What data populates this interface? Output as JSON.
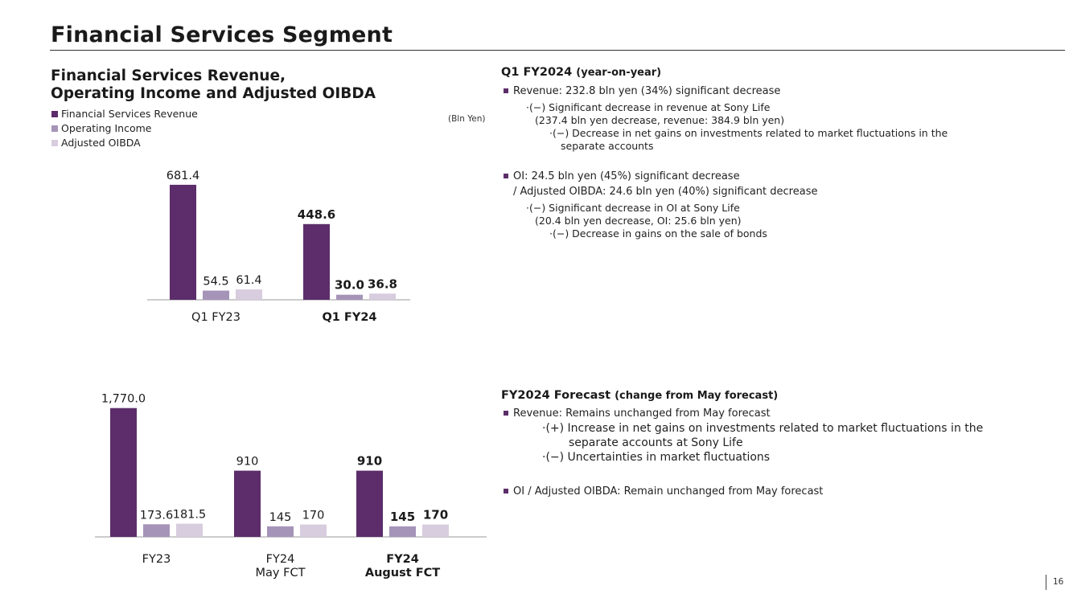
{
  "page": {
    "title": "Financial Services Segment",
    "page_number": "16"
  },
  "section": {
    "title_line1": "Financial Services Revenue,",
    "title_line2": "Operating Income and Adjusted OIBDA"
  },
  "legend": [
    {
      "label": "Financial Services Revenue",
      "color": "#5c2d6a"
    },
    {
      "label": "Operating Income",
      "color": "#a594b8"
    },
    {
      "label": "Adjusted OIBDA",
      "color": "#d8ccdf"
    }
  ],
  "unit_label": "(Bln Yen)",
  "chart_data": [
    {
      "type": "bar",
      "title": "Financial Services Revenue, Operating Income and Adjusted OIBDA (Q1)",
      "unit": "Bln Yen",
      "categories": [
        "Q1 FY23",
        "Q1 FY24"
      ],
      "category_bold": [
        false,
        true
      ],
      "series": [
        {
          "name": "Financial Services Revenue",
          "values": [
            681.4,
            448.6
          ],
          "labels": [
            "681.4",
            "448.6"
          ]
        },
        {
          "name": "Operating Income",
          "values": [
            54.5,
            30.0
          ],
          "labels": [
            "54.5",
            "30.0"
          ]
        },
        {
          "name": "Adjusted OIBDA",
          "values": [
            61.4,
            36.8
          ],
          "labels": [
            "61.4",
            "36.8"
          ]
        }
      ],
      "ylim": [
        0,
        700
      ]
    },
    {
      "type": "bar",
      "title": "Financial Services Revenue, Operating Income and Adjusted OIBDA (Fiscal Year)",
      "unit": "Bln Yen",
      "categories": [
        [
          "FY23"
        ],
        [
          "FY24",
          "May FCT"
        ],
        [
          "FY24",
          "August FCT"
        ]
      ],
      "category_bold": [
        false,
        false,
        true
      ],
      "series": [
        {
          "name": "Financial Services Revenue",
          "values": [
            1770.0,
            910,
            910
          ],
          "labels": [
            "1,770.0",
            "910",
            "910"
          ]
        },
        {
          "name": "Operating Income",
          "values": [
            173.6,
            145,
            145
          ],
          "labels": [
            "173.6",
            "145",
            "145"
          ]
        },
        {
          "name": "Adjusted OIBDA",
          "values": [
            181.5,
            170,
            170
          ],
          "labels": [
            "181.5",
            "170",
            "170"
          ]
        }
      ],
      "ylim": [
        0,
        1800
      ]
    }
  ],
  "q1": {
    "heading": "Q1 FY2024",
    "heading_sub": "(year-on-year)",
    "bullet1": "Revenue: 232.8 bln yen (34%) significant decrease",
    "b1_sub1_line1": "·(−) Significant decrease in revenue at Sony Life",
    "b1_sub1_line2": "(237.4 bln yen decrease, revenue: 384.9 bln yen)",
    "b1_sub2_line1": "·(−) Decrease in net gains on investments related to market fluctuations in the",
    "b1_sub2_line2": "separate accounts",
    "bullet2_line1": "OI: 24.5 bln yen (45%) significant decrease",
    "bullet2_line2": "/ Adjusted OIBDA: 24.6 bln yen (40%) significant decrease",
    "b2_sub1_line1": "·(−) Significant decrease in OI at Sony Life",
    "b2_sub1_line2": "(20.4 bln yen decrease, OI: 25.6 bln yen)",
    "b2_sub2": "·(−) Decrease in gains on the sale of bonds"
  },
  "forecast": {
    "heading": "FY2024 Forecast",
    "heading_sub": "(change from May forecast)",
    "bullet1": "Revenue: Remains unchanged from May forecast",
    "b1_sub1_line1": "·(+) Increase in net gains on investments related to market fluctuations in the",
    "b1_sub1_line2": "separate accounts at Sony Life",
    "b1_sub2": "·(−) Uncertainties in market fluctuations",
    "bullet2": "OI / Adjusted OIBDA: Remain unchanged from May forecast"
  }
}
